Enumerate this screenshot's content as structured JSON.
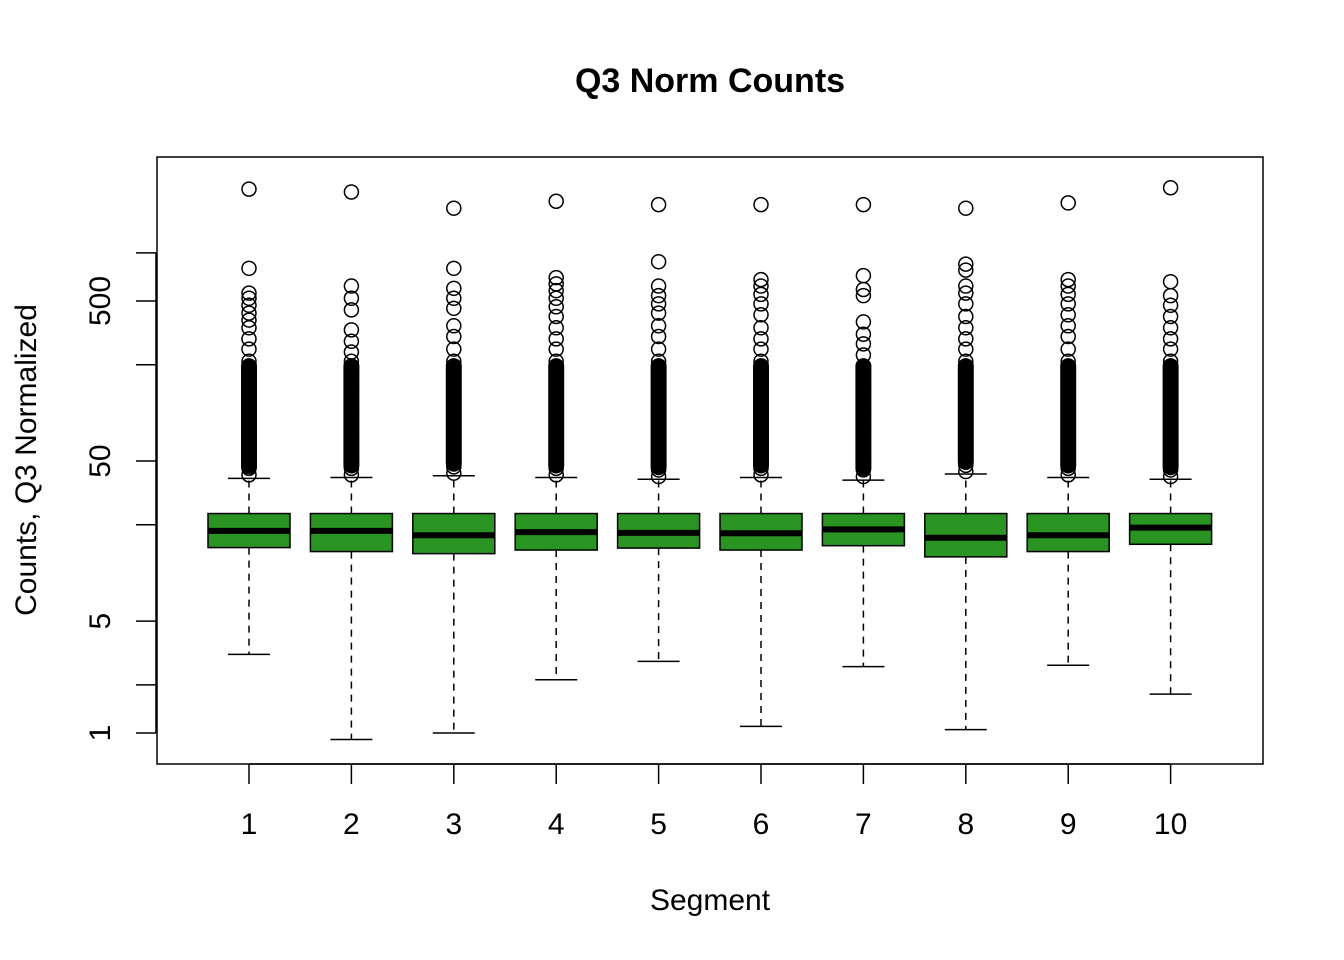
{
  "chart_data": {
    "type": "boxplot",
    "title": "Q3 Norm Counts",
    "xlabel": "Segment",
    "ylabel": "Counts, Q3 Normalized",
    "y_scale": "log",
    "ylim": [
      0.8,
      3500
    ],
    "y_ticks": [
      1,
      5,
      50,
      500
    ],
    "y_minor_ticks": [
      2,
      20,
      200,
      1000
    ],
    "grid": false,
    "legend": "none",
    "box_color": "#2a9423",
    "categories": [
      "1",
      "2",
      "3",
      "4",
      "5",
      "6",
      "7",
      "8",
      "9",
      "10"
    ],
    "boxes": [
      {
        "whisker_low": 3.1,
        "q1": 14.4,
        "median": 18.3,
        "q3": 23.5,
        "whisker_high": 39.0,
        "outliers": [
          41,
          45,
          52,
          60,
          70,
          85,
          100,
          120,
          145,
          175,
          210,
          250,
          290,
          340,
          380,
          420,
          470,
          520,
          560,
          800,
          2500
        ]
      },
      {
        "whisker_low": 0.91,
        "q1": 13.6,
        "median": 18.3,
        "q3": 23.5,
        "whisker_high": 39.5,
        "outliers": [
          41,
          45,
          52,
          60,
          70,
          85,
          100,
          120,
          145,
          175,
          210,
          240,
          280,
          330,
          440,
          520,
          620,
          2400
        ]
      },
      {
        "whisker_low": 1.0,
        "q1": 13.2,
        "median": 17.2,
        "q3": 23.5,
        "whisker_high": 40.5,
        "outliers": [
          42,
          46,
          53,
          62,
          72,
          86,
          100,
          120,
          145,
          175,
          210,
          250,
          300,
          350,
          450,
          520,
          600,
          800,
          1900
        ]
      },
      {
        "whisker_low": 2.15,
        "q1": 13.9,
        "median": 18.0,
        "q3": 23.5,
        "whisker_high": 39.5,
        "outliers": [
          41,
          45,
          52,
          60,
          70,
          85,
          100,
          120,
          145,
          175,
          210,
          250,
          290,
          340,
          400,
          460,
          520,
          580,
          640,
          700,
          2100
        ]
      },
      {
        "whisker_low": 2.8,
        "q1": 14.3,
        "median": 17.8,
        "q3": 23.5,
        "whisker_high": 38.5,
        "outliers": [
          40,
          44,
          50,
          58,
          68,
          82,
          100,
          120,
          145,
          175,
          210,
          250,
          300,
          350,
          420,
          480,
          540,
          620,
          880,
          2000
        ]
      },
      {
        "whisker_low": 1.1,
        "q1": 13.9,
        "median": 17.7,
        "q3": 23.5,
        "whisker_high": 39.5,
        "outliers": [
          41,
          45,
          52,
          60,
          70,
          85,
          100,
          120,
          145,
          175,
          210,
          250,
          290,
          340,
          410,
          480,
          550,
          620,
          680,
          2000
        ]
      },
      {
        "whisker_low": 2.6,
        "q1": 14.8,
        "median": 18.7,
        "q3": 23.5,
        "whisker_high": 38.0,
        "outliers": [
          40,
          44,
          50,
          58,
          68,
          82,
          100,
          120,
          140,
          165,
          195,
          230,
          270,
          310,
          370,
          540,
          590,
          720,
          2000
        ]
      },
      {
        "whisker_low": 1.05,
        "q1": 12.6,
        "median": 16.6,
        "q3": 23.5,
        "whisker_high": 41.5,
        "outliers": [
          43,
          47,
          54,
          63,
          74,
          88,
          100,
          120,
          145,
          175,
          210,
          250,
          290,
          340,
          400,
          480,
          560,
          620,
          780,
          850,
          1900
        ]
      },
      {
        "whisker_low": 2.65,
        "q1": 13.6,
        "median": 17.2,
        "q3": 23.5,
        "whisker_high": 39.5,
        "outliers": [
          41,
          45,
          52,
          60,
          70,
          85,
          100,
          120,
          145,
          175,
          210,
          250,
          300,
          350,
          410,
          480,
          550,
          620,
          680,
          2050
        ]
      },
      {
        "whisker_low": 1.75,
        "q1": 15.1,
        "median": 19.2,
        "q3": 23.5,
        "whisker_high": 38.5,
        "outliers": [
          40,
          44,
          50,
          58,
          68,
          82,
          100,
          120,
          145,
          175,
          210,
          250,
          290,
          340,
          400,
          470,
          540,
          660,
          2550
        ]
      }
    ]
  }
}
